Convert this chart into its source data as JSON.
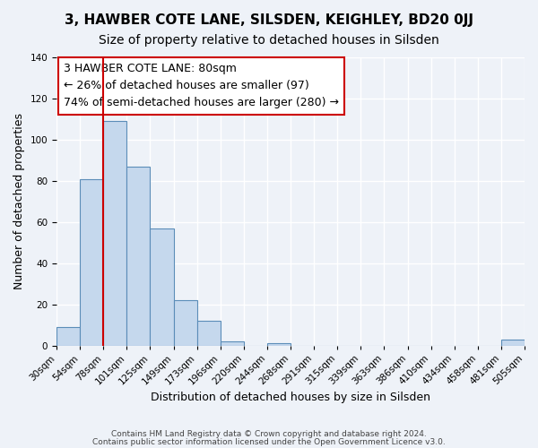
{
  "title1": "3, HAWBER COTE LANE, SILSDEN, KEIGHLEY, BD20 0JJ",
  "title2": "Size of property relative to detached houses in Silsden",
  "xlabel": "Distribution of detached houses by size in Silsden",
  "ylabel": "Number of detached properties",
  "bar_values": [
    9,
    81,
    109,
    87,
    57,
    22,
    12,
    2,
    0,
    1,
    0,
    0,
    0,
    0,
    0,
    0,
    0,
    0,
    0,
    3
  ],
  "bar_labels": [
    "30sqm",
    "54sqm",
    "78sqm",
    "101sqm",
    "125sqm",
    "149sqm",
    "173sqm",
    "196sqm",
    "220sqm",
    "244sqm",
    "268sqm",
    "291sqm",
    "315sqm",
    "339sqm",
    "363sqm",
    "386sqm",
    "410sqm",
    "434sqm",
    "458sqm",
    "481sqm",
    "505sqm"
  ],
  "bar_color": "#c5d8ed",
  "bar_edge_color": "#5b8db8",
  "vline_x": 2,
  "vline_color": "#cc0000",
  "annotation_box_text": "3 HAWBER COTE LANE: 80sqm\n← 26% of detached houses are smaller (97)\n74% of semi-detached houses are larger (280) →",
  "ylim": [
    0,
    140
  ],
  "yticks": [
    0,
    20,
    40,
    60,
    80,
    100,
    120,
    140
  ],
  "background_color": "#eef2f8",
  "grid_color": "#ffffff",
  "footer1": "Contains HM Land Registry data © Crown copyright and database right 2024.",
  "footer2": "Contains public sector information licensed under the Open Government Licence v3.0.",
  "title1_fontsize": 11,
  "title2_fontsize": 10,
  "annotation_fontsize": 9,
  "axis_label_fontsize": 9,
  "tick_fontsize": 7.5
}
